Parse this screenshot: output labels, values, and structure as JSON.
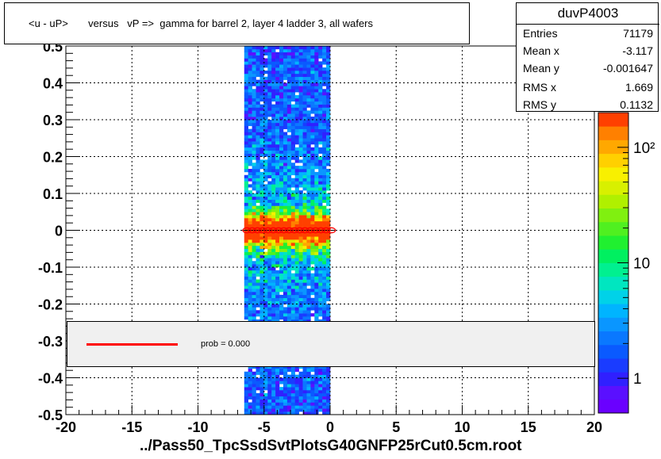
{
  "title": "<u - uP>       versus   vP =>  gamma for barrel 2, layer 4 ladder 3, all wafers",
  "footer": "../Pass50_TpcSsdSvtPlotsG40GNFP25rCut0.5cm.root",
  "stats": {
    "name": "duvP4003",
    "rows": [
      {
        "label": "Entries",
        "value": "71179"
      },
      {
        "label": "Mean x",
        "value": "-3.117"
      },
      {
        "label": "Mean y",
        "value": "-0.001647"
      },
      {
        "label": "RMS x",
        "value": "1.669"
      },
      {
        "label": "RMS y",
        "value": "0.1132"
      }
    ]
  },
  "legend": {
    "label": "prob = 0.000",
    "line_color": "#ff0000"
  },
  "palette": [
    "#6a00ff",
    "#5a10ff",
    "#3020ff",
    "#1a3cff",
    "#0a5aff",
    "#0a78ff",
    "#0a96ff",
    "#00b4ff",
    "#00d2e8",
    "#00e6c0",
    "#00f090",
    "#00f060",
    "#20f030",
    "#50f020",
    "#80f010",
    "#b0f000",
    "#d8f000",
    "#f8f000",
    "#ffd000",
    "#ffa800",
    "#ff8000",
    "#ff4000"
  ],
  "chart_data": {
    "type": "heatmap",
    "xlim": [
      -20,
      20
    ],
    "ylim": [
      -0.5,
      0.5
    ],
    "x_ticks": [
      -20,
      -15,
      -10,
      -5,
      0,
      5,
      10,
      15,
      20
    ],
    "y_ticks": [
      -0.5,
      -0.4,
      -0.3,
      -0.2,
      -0.1,
      0,
      0.1,
      0.2,
      0.3,
      0.4,
      0.5
    ],
    "x_tick_labels": [
      "-20",
      "-15",
      "-10",
      "-5",
      "0",
      "5",
      "10",
      "15",
      "20"
    ],
    "y_tick_labels": [
      "-0.5",
      "-0.4",
      "-0.3",
      "-0.2",
      "-0.1",
      "0",
      "0.1",
      "0.2",
      "0.3",
      "0.4",
      "0.5"
    ],
    "grid": true,
    "colorbar": {
      "scale": "log",
      "range": [
        0.5,
        200
      ],
      "tick_labels": [
        "1",
        "10",
        "10²"
      ],
      "ticks": [
        1,
        10,
        100
      ]
    },
    "band": {
      "x_range": [
        -6.5,
        0
      ],
      "y_center": 0,
      "y_sigma": 0.03
    },
    "profile": {
      "x": [
        -6.3,
        -5.9,
        -5.5,
        -5.1,
        -4.7,
        -4.3,
        -3.9,
        -3.5,
        -3.1,
        -2.7,
        -2.3,
        -1.9,
        -1.5,
        -1.1,
        -0.7,
        -0.3,
        0.1
      ],
      "y": [
        0,
        0,
        0,
        0,
        0,
        0,
        0,
        0,
        0,
        0,
        0,
        0,
        0,
        0,
        0,
        0,
        0
      ]
    }
  }
}
